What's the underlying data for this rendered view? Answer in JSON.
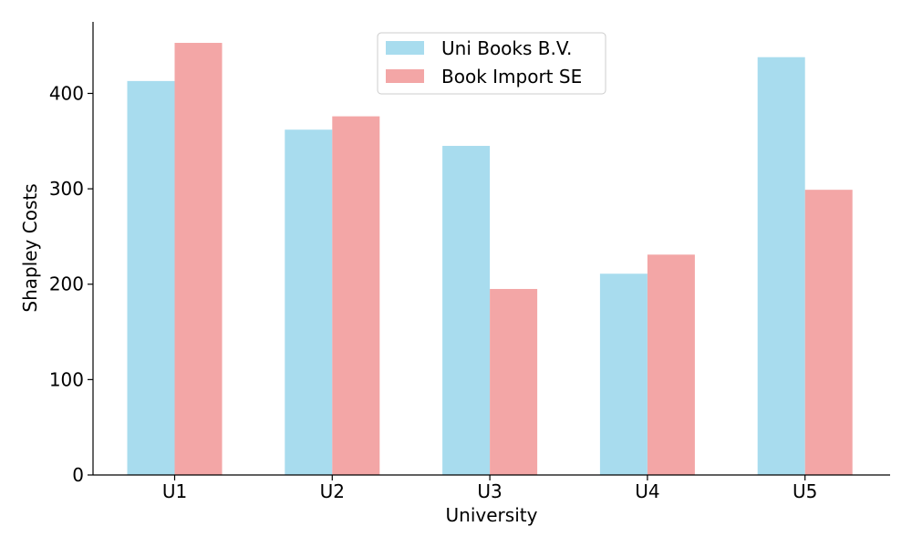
{
  "chart_data": {
    "type": "bar",
    "title": "",
    "xlabel": "University",
    "ylabel": "Shapley Costs",
    "categories": [
      "U1",
      "U2",
      "U3",
      "U4",
      "U5"
    ],
    "series": [
      {
        "name": "Uni Books B.V.",
        "color": "#a8dcee",
        "values": [
          413,
          362,
          345,
          211,
          438
        ]
      },
      {
        "name": "Book Import SE",
        "color": "#f3a6a6",
        "values": [
          453,
          376,
          195,
          231,
          299
        ]
      }
    ],
    "ylim": [
      0,
      475
    ],
    "yticks": [
      0,
      100,
      200,
      300,
      400
    ],
    "grid": false,
    "legend_position": "top-center"
  }
}
